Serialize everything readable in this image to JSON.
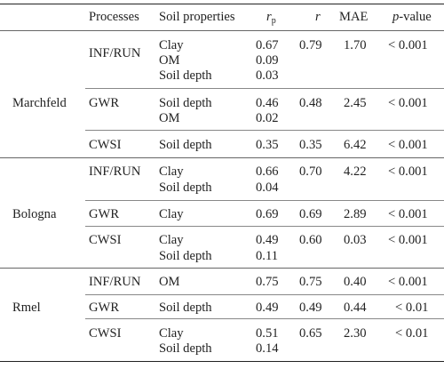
{
  "header": {
    "processes": "Processes",
    "soil_properties": "Soil properties",
    "rp_base": "r",
    "rp_sub": "p",
    "r": "r",
    "mae": "MAE",
    "pvalue_italic": "p",
    "pvalue_rest": "-value"
  },
  "sites": [
    "Marchfeld",
    "Bologna",
    "Rmel"
  ],
  "rows": {
    "m_inf": {
      "process": "INF/RUN",
      "props": [
        "Clay",
        "OM",
        "Soil depth"
      ],
      "rps": [
        "0.67",
        "0.09",
        "0.03"
      ],
      "r": "0.79",
      "mae": "1.70",
      "p": "< 0.001"
    },
    "m_gwr": {
      "process": "GWR",
      "props": [
        "Soil depth",
        "OM"
      ],
      "rps": [
        "0.46",
        "0.02"
      ],
      "r": "0.48",
      "mae": "2.45",
      "p": "< 0.001"
    },
    "m_cwsi": {
      "process": "CWSI",
      "props": [
        "Soil depth"
      ],
      "rps": [
        "0.35"
      ],
      "r": "0.35",
      "mae": "6.42",
      "p": "< 0.001"
    },
    "b_inf": {
      "process": "INF/RUN",
      "props": [
        "Clay",
        "Soil depth"
      ],
      "rps": [
        "0.66",
        "0.04"
      ],
      "r": "0.70",
      "mae": "4.22",
      "p": "< 0.001"
    },
    "b_gwr": {
      "process": "GWR",
      "props": [
        "Clay"
      ],
      "rps": [
        "0.69"
      ],
      "r": "0.69",
      "mae": "2.89",
      "p": "< 0.001"
    },
    "b_cwsi": {
      "process": "CWSI",
      "props": [
        "Clay",
        "Soil depth"
      ],
      "rps": [
        "0.49",
        "0.11"
      ],
      "r": "0.60",
      "mae": "0.03",
      "p": "< 0.001"
    },
    "r_inf": {
      "process": "INF/RUN",
      "props": [
        "OM"
      ],
      "rps": [
        "0.75"
      ],
      "r": "0.75",
      "mae": "0.40",
      "p": "< 0.001"
    },
    "r_gwr": {
      "process": "GWR",
      "props": [
        "Soil depth"
      ],
      "rps": [
        "0.49"
      ],
      "r": "0.49",
      "mae": "0.44",
      "p": "< 0.01"
    },
    "r_cwsi": {
      "process": "CWSI",
      "props": [
        "Clay",
        "Soil depth"
      ],
      "rps": [
        "0.51",
        "0.14"
      ],
      "r": "0.65",
      "mae": "2.30",
      "p": "< 0.01"
    }
  }
}
